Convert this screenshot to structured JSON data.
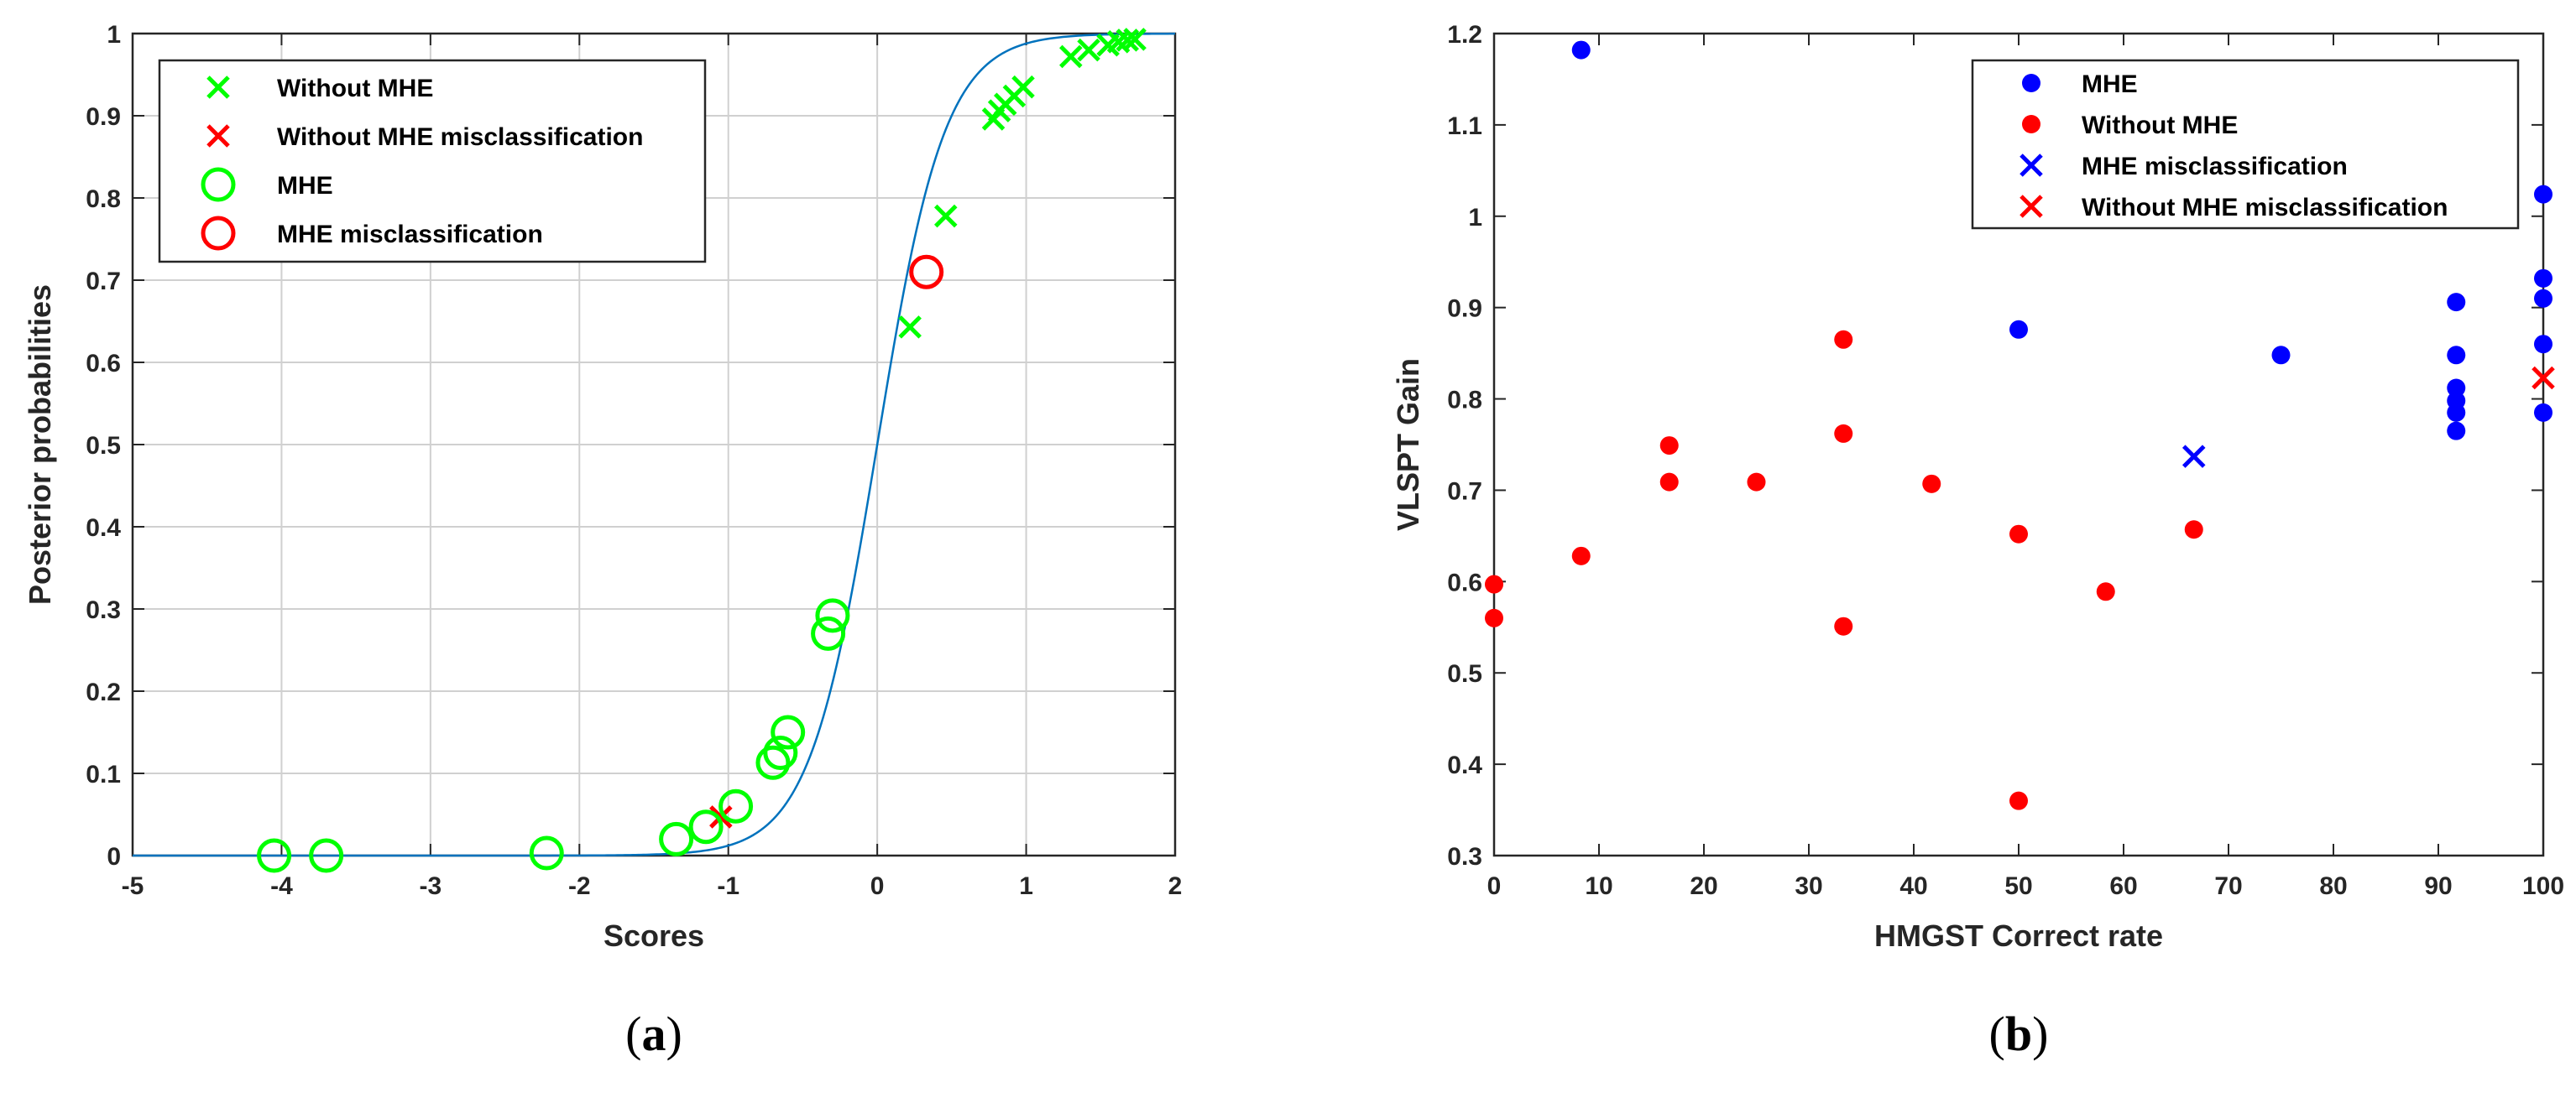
{
  "colors": {
    "green": "#00ff00",
    "red": "#ff0000",
    "blue": "#0000ff",
    "curve": "#0072bd",
    "grid": "#d0d0d0",
    "axis": "#262626"
  },
  "chart_data": [
    {
      "type": "scatter",
      "id": "a",
      "panel_label": "a",
      "xlabel": "Scores",
      "ylabel": "Posterior probabilities",
      "xlim": [
        -5,
        2
      ],
      "ylim": [
        0,
        1
      ],
      "xticks": [
        -5,
        -4,
        -3,
        -2,
        -1,
        0,
        1,
        2
      ],
      "yticks": [
        0,
        0.1,
        0.2,
        0.3,
        0.4,
        0.5,
        0.6,
        0.7,
        0.8,
        0.9,
        1
      ],
      "grid": true,
      "legend_position": "top-left",
      "curve": {
        "type": "logistic",
        "slope": 4.4,
        "midpoint": 0
      },
      "legend": [
        {
          "label": "Without MHE",
          "marker": "x",
          "color": "#00ff00"
        },
        {
          "label": "Without MHE misclassification",
          "marker": "x",
          "color": "#ff0000"
        },
        {
          "label": "MHE",
          "marker": "o",
          "color": "#00ff00"
        },
        {
          "label": "MHE misclassification",
          "marker": "o",
          "color": "#ff0000"
        }
      ],
      "series": [
        {
          "name": "Without MHE",
          "marker": "x",
          "color": "#00ff00",
          "points": [
            [
              0.22,
              0.643
            ],
            [
              0.46,
              0.778
            ],
            [
              0.78,
              0.896
            ],
            [
              0.82,
              0.906
            ],
            [
              0.86,
              0.914
            ],
            [
              0.92,
              0.924
            ],
            [
              0.98,
              0.935
            ],
            [
              1.3,
              0.972
            ],
            [
              1.42,
              0.98
            ],
            [
              1.55,
              0.986
            ],
            [
              1.62,
              0.99
            ],
            [
              1.68,
              0.992
            ],
            [
              1.73,
              0.993
            ]
          ]
        },
        {
          "name": "Without MHE misclassification",
          "marker": "x",
          "color": "#ff0000",
          "points": [
            [
              -1.05,
              0.047
            ]
          ]
        },
        {
          "name": "MHE",
          "marker": "o",
          "color": "#00ff00",
          "points": [
            [
              -4.05,
              0.0
            ],
            [
              -3.7,
              0.0
            ],
            [
              -2.22,
              0.003
            ],
            [
              -1.35,
              0.02
            ],
            [
              -1.15,
              0.035
            ],
            [
              -0.95,
              0.06
            ],
            [
              -0.7,
              0.113
            ],
            [
              -0.65,
              0.125
            ],
            [
              -0.6,
              0.15
            ],
            [
              -0.33,
              0.27
            ],
            [
              -0.3,
              0.292
            ]
          ]
        },
        {
          "name": "MHE misclassification",
          "marker": "o",
          "color": "#ff0000",
          "points": [
            [
              0.33,
              0.71
            ]
          ]
        }
      ]
    },
    {
      "type": "scatter",
      "id": "b",
      "panel_label": "b",
      "xlabel": "HMGST Correct rate",
      "ylabel": "VLSPT Gain",
      "xlim": [
        0,
        100
      ],
      "ylim": [
        0.3,
        1.2
      ],
      "xticks": [
        0,
        10,
        20,
        30,
        40,
        50,
        60,
        70,
        80,
        90,
        100
      ],
      "yticks": [
        0.3,
        0.4,
        0.5,
        0.6,
        0.7,
        0.8,
        0.9,
        1,
        1.1,
        1.2
      ],
      "grid": false,
      "legend_position": "top-right",
      "legend": [
        {
          "label": "MHE",
          "marker": "dot",
          "color": "#0000ff"
        },
        {
          "label": "Without MHE",
          "marker": "dot",
          "color": "#ff0000"
        },
        {
          "label": "MHE misclassification",
          "marker": "x",
          "color": "#0000ff"
        },
        {
          "label": "Without MHE misclassification",
          "marker": "x",
          "color": "#ff0000"
        }
      ],
      "series": [
        {
          "name": "MHE",
          "marker": "dot",
          "color": "#0000ff",
          "points": [
            [
              8.3,
              1.182
            ],
            [
              50,
              0.876
            ],
            [
              75,
              0.848
            ],
            [
              91.7,
              0.906
            ],
            [
              91.7,
              0.848
            ],
            [
              91.7,
              0.812
            ],
            [
              91.7,
              0.798
            ],
            [
              91.7,
              0.785
            ],
            [
              91.7,
              0.765
            ],
            [
              100,
              1.024
            ],
            [
              100,
              0.932
            ],
            [
              100,
              0.91
            ],
            [
              100,
              0.86
            ],
            [
              100,
              0.785
            ]
          ]
        },
        {
          "name": "Without MHE",
          "marker": "dot",
          "color": "#ff0000",
          "points": [
            [
              0,
              0.597
            ],
            [
              0,
              0.56
            ],
            [
              8.3,
              0.628
            ],
            [
              16.7,
              0.749
            ],
            [
              16.7,
              0.709
            ],
            [
              25,
              0.709
            ],
            [
              33.3,
              0.865
            ],
            [
              33.3,
              0.762
            ],
            [
              33.3,
              0.551
            ],
            [
              41.7,
              0.707
            ],
            [
              50,
              0.652
            ],
            [
              50,
              0.36
            ],
            [
              58.3,
              0.589
            ],
            [
              66.7,
              0.657
            ]
          ]
        },
        {
          "name": "MHE misclassification",
          "marker": "x",
          "color": "#0000ff",
          "points": [
            [
              66.7,
              0.737
            ]
          ]
        },
        {
          "name": "Without MHE misclassification",
          "marker": "x",
          "color": "#ff0000",
          "points": [
            [
              100,
              0.823
            ]
          ]
        }
      ]
    }
  ]
}
